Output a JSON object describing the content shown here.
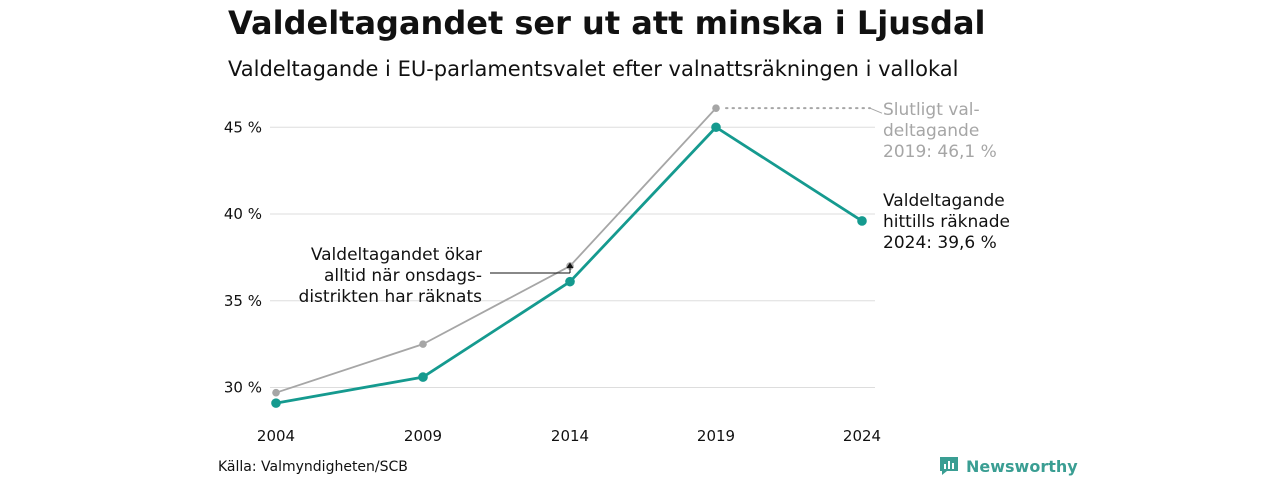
{
  "title": "Valdeltagandet ser ut att minska i Ljusdal",
  "subtitle": "Valdeltagande i EU-parlamentsvalet efter valnattsräkningen i vallokal",
  "source": "Källa: Valmyndigheten/SCB",
  "brand": {
    "name": "Newsworthy",
    "icon": "newsworthy-logo-icon",
    "color": "#3a9e93"
  },
  "colors": {
    "final": "#a6a6a6",
    "counted": "#159a8f",
    "grid": "#dddddd",
    "text": "#111111",
    "annotation_final": "#a6a6a6"
  },
  "chart_data": {
    "type": "line",
    "title": "Valdeltagandet ser ut att minska i Ljusdal",
    "subtitle": "Valdeltagande i EU-parlamentsvalet efter valnattsräkningen i vallokal",
    "x": [
      "2004",
      "2009",
      "2014",
      "2019",
      "2024"
    ],
    "ylim": [
      28.6,
      47.2
    ],
    "yticks": [
      30,
      35,
      40,
      45
    ],
    "ytick_labels": [
      "30 %",
      "35 %",
      "40 %",
      "45 %"
    ],
    "grid": true,
    "series": [
      {
        "key": "final",
        "values": [
          29.7,
          32.5,
          37.0,
          46.1,
          null
        ]
      },
      {
        "key": "counted",
        "values": [
          29.1,
          30.6,
          36.1,
          45.0,
          39.6
        ]
      }
    ],
    "annotations": {
      "final_2019": [
        "Slutligt val-",
        "deltagande",
        "2019: 46,1 %"
      ],
      "counted_2024": [
        "Valdeltagande",
        "hittills räknade",
        "2024: 39,6 %"
      ],
      "wednesday": [
        "Valdeltagandet ökar",
        "alltid när onsdags-",
        "distrikten har räknats"
      ]
    }
  }
}
